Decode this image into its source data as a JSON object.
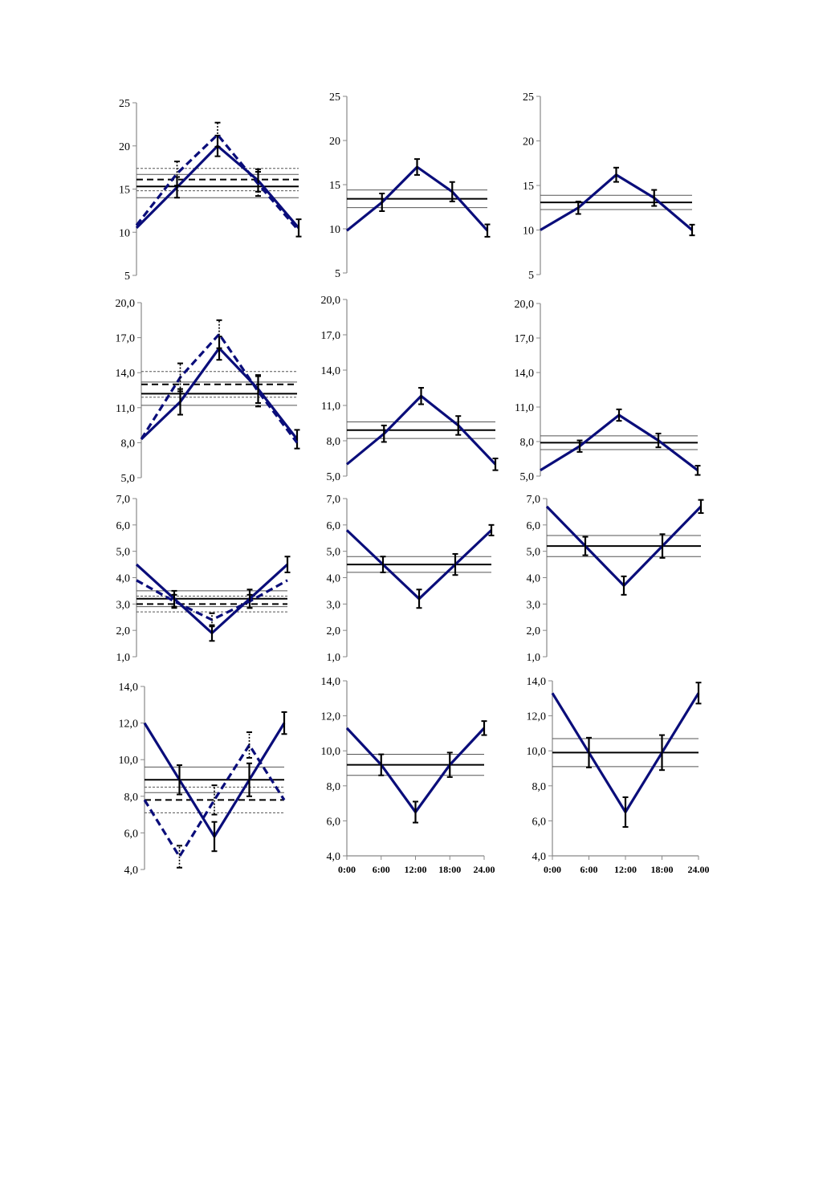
{
  "colors": {
    "series": "#0a0d7a",
    "mean": "#000000",
    "band": "#555555",
    "axis": "#888888"
  },
  "chart_data": [
    {
      "type": "line",
      "x": [
        0,
        6,
        12,
        18,
        24
      ],
      "ylim": [
        5,
        25
      ],
      "yticks": [
        "5",
        "10",
        "15",
        "20",
        "25"
      ],
      "xticks": [],
      "series": [
        {
          "style": "solid",
          "values": [
            10.5,
            15.2,
            20.0,
            16.0,
            10.5
          ],
          "err": [
            0.0,
            1.2,
            1.2,
            1.3,
            1.0
          ]
        },
        {
          "style": "dashed",
          "values": [
            10.8,
            16.8,
            21.3,
            15.6,
            10.2
          ],
          "err": [
            0.0,
            1.4,
            1.4,
            1.4,
            0.0
          ]
        }
      ],
      "hlines": [
        {
          "y": 15.3,
          "style": "mean"
        },
        {
          "y": 16.7,
          "style": "band"
        },
        {
          "y": 14.0,
          "style": "band"
        },
        {
          "y": 16.1,
          "style": "mean-dashed"
        },
        {
          "y": 17.4,
          "style": "band-dashed"
        },
        {
          "y": 14.8,
          "style": "band-dashed"
        }
      ]
    },
    {
      "type": "line",
      "x": [
        0,
        6,
        12,
        18,
        24
      ],
      "ylim": [
        5,
        25
      ],
      "yticks": [
        "5",
        "10",
        "15",
        "20",
        "25"
      ],
      "xticks": [],
      "series": [
        {
          "style": "solid",
          "values": [
            9.8,
            13.0,
            17.0,
            14.2,
            9.8
          ],
          "err": [
            0.0,
            1.0,
            0.9,
            1.1,
            0.7
          ]
        }
      ],
      "hlines": [
        {
          "y": 13.4,
          "style": "mean"
        },
        {
          "y": 14.4,
          "style": "band"
        },
        {
          "y": 12.4,
          "style": "band"
        }
      ]
    },
    {
      "type": "line",
      "x": [
        0,
        6,
        12,
        18,
        24
      ],
      "ylim": [
        5,
        25
      ],
      "yticks": [
        "5",
        "10",
        "15",
        "20",
        "25"
      ],
      "xticks": [],
      "series": [
        {
          "style": "solid",
          "values": [
            10.0,
            12.5,
            16.2,
            13.6,
            10.0
          ],
          "err": [
            0.0,
            0.7,
            0.8,
            0.9,
            0.6
          ]
        }
      ],
      "hlines": [
        {
          "y": 13.1,
          "style": "mean"
        },
        {
          "y": 13.9,
          "style": "band"
        },
        {
          "y": 12.3,
          "style": "band"
        }
      ]
    },
    {
      "type": "line",
      "x": [
        0,
        6,
        12,
        18,
        24
      ],
      "ylim": [
        5,
        20
      ],
      "yticks": [
        "5,0",
        "8,0",
        "11,0",
        "14,0",
        "17,0",
        "20,0"
      ],
      "xticks": [],
      "series": [
        {
          "style": "solid",
          "values": [
            8.3,
            11.5,
            16.1,
            12.6,
            8.3
          ],
          "err": [
            0.0,
            1.1,
            1.0,
            1.2,
            0.8
          ]
        },
        {
          "style": "dashed",
          "values": [
            8.3,
            13.6,
            17.3,
            12.4,
            8.0
          ],
          "err": [
            0.0,
            1.2,
            1.2,
            1.3,
            0.0
          ]
        }
      ],
      "hlines": [
        {
          "y": 12.2,
          "style": "mean"
        },
        {
          "y": 13.2,
          "style": "band"
        },
        {
          "y": 11.2,
          "style": "band"
        },
        {
          "y": 13.0,
          "style": "mean-dashed"
        },
        {
          "y": 14.1,
          "style": "band-dashed"
        },
        {
          "y": 11.9,
          "style": "band-dashed"
        }
      ]
    },
    {
      "type": "line",
      "x": [
        0,
        6,
        12,
        18,
        24
      ],
      "ylim": [
        5,
        20
      ],
      "yticks": [
        "5,0",
        "8,0",
        "11,0",
        "14,0",
        "17,0",
        "20,0"
      ],
      "xticks": [],
      "series": [
        {
          "style": "solid",
          "values": [
            6.0,
            8.6,
            11.8,
            9.3,
            6.0
          ],
          "err": [
            0.0,
            0.7,
            0.7,
            0.8,
            0.5
          ]
        }
      ],
      "hlines": [
        {
          "y": 8.9,
          "style": "mean"
        },
        {
          "y": 9.6,
          "style": "band"
        },
        {
          "y": 8.2,
          "style": "band"
        }
      ]
    },
    {
      "type": "line",
      "x": [
        0,
        6,
        12,
        18,
        24
      ],
      "ylim": [
        5,
        20
      ],
      "yticks": [
        "5,0",
        "8,0",
        "11,0",
        "14,0",
        "17,0",
        "20,0"
      ],
      "xticks": [],
      "series": [
        {
          "style": "solid",
          "values": [
            5.5,
            7.6,
            10.3,
            8.1,
            5.5
          ],
          "err": [
            0.0,
            0.5,
            0.5,
            0.6,
            0.4
          ]
        }
      ],
      "hlines": [
        {
          "y": 7.9,
          "style": "mean"
        },
        {
          "y": 8.5,
          "style": "band"
        },
        {
          "y": 7.3,
          "style": "band"
        }
      ]
    },
    {
      "type": "line",
      "x": [
        0,
        6,
        12,
        18,
        24
      ],
      "ylim": [
        1,
        7
      ],
      "yticks": [
        "1,0",
        "2,0",
        "3,0",
        "4,0",
        "5,0",
        "6,0",
        "7,0"
      ],
      "xticks": [],
      "series": [
        {
          "style": "solid",
          "values": [
            4.5,
            3.2,
            1.9,
            3.2,
            4.5
          ],
          "err": [
            0.0,
            0.3,
            0.3,
            0.35,
            0.3
          ]
        },
        {
          "style": "dashed",
          "values": [
            3.9,
            3.1,
            2.4,
            3.1,
            3.9
          ],
          "err": [
            0.0,
            0.25,
            0.25,
            0.25,
            0.0
          ]
        }
      ],
      "hlines": [
        {
          "y": 3.2,
          "style": "mean"
        },
        {
          "y": 3.5,
          "style": "band"
        },
        {
          "y": 2.9,
          "style": "band"
        },
        {
          "y": 3.0,
          "style": "mean-dashed"
        },
        {
          "y": 3.3,
          "style": "band-dashed"
        },
        {
          "y": 2.7,
          "style": "band-dashed"
        }
      ]
    },
    {
      "type": "line",
      "x": [
        0,
        6,
        12,
        18,
        24
      ],
      "ylim": [
        1,
        7
      ],
      "yticks": [
        "1,0",
        "2,0",
        "3,0",
        "4,0",
        "5,0",
        "6,0",
        "7,0"
      ],
      "xticks": [],
      "series": [
        {
          "style": "solid",
          "values": [
            5.8,
            4.5,
            3.2,
            4.5,
            5.8
          ],
          "err": [
            0.0,
            0.3,
            0.35,
            0.4,
            0.2
          ]
        }
      ],
      "hlines": [
        {
          "y": 4.5,
          "style": "mean"
        },
        {
          "y": 4.8,
          "style": "band"
        },
        {
          "y": 4.2,
          "style": "band"
        }
      ]
    },
    {
      "type": "line",
      "x": [
        0,
        6,
        12,
        18,
        24
      ],
      "ylim": [
        1,
        7
      ],
      "yticks": [
        "1,0",
        "2,0",
        "3,0",
        "4,0",
        "5,0",
        "6,0",
        "7,0"
      ],
      "xticks": [],
      "series": [
        {
          "style": "solid",
          "values": [
            6.7,
            5.2,
            3.7,
            5.2,
            6.7
          ],
          "err": [
            0.0,
            0.35,
            0.35,
            0.45,
            0.25
          ]
        }
      ],
      "hlines": [
        {
          "y": 5.2,
          "style": "mean"
        },
        {
          "y": 5.6,
          "style": "band"
        },
        {
          "y": 4.8,
          "style": "band"
        }
      ]
    },
    {
      "type": "line",
      "x": [
        0,
        6,
        12,
        18,
        24
      ],
      "ylim": [
        4,
        14
      ],
      "yticks": [
        "4,0",
        "6,0",
        "8,0",
        "10,0",
        "12,0",
        "14,0"
      ],
      "xticks": [],
      "series": [
        {
          "style": "solid",
          "values": [
            12.0,
            8.9,
            5.8,
            8.9,
            12.0
          ],
          "err": [
            0.0,
            0.8,
            0.8,
            0.9,
            0.6
          ]
        },
        {
          "style": "dashed",
          "values": [
            7.8,
            4.7,
            7.8,
            10.8,
            7.8
          ],
          "err": [
            0.0,
            0.6,
            0.8,
            0.7,
            0.0
          ]
        }
      ],
      "hlines": [
        {
          "y": 8.9,
          "style": "mean"
        },
        {
          "y": 9.6,
          "style": "band"
        },
        {
          "y": 8.2,
          "style": "band"
        },
        {
          "y": 7.8,
          "style": "mean-dashed"
        },
        {
          "y": 8.5,
          "style": "band-dashed"
        },
        {
          "y": 7.1,
          "style": "band-dashed"
        }
      ]
    },
    {
      "type": "line",
      "x": [
        0,
        6,
        12,
        18,
        24
      ],
      "ylim": [
        4,
        14
      ],
      "yticks": [
        "4,0",
        "6,0",
        "8,0",
        "10,0",
        "12,0",
        "14,0"
      ],
      "xticks": [
        "0:00",
        "6:00",
        "12:00",
        "18:00",
        "24.00"
      ],
      "series": [
        {
          "style": "solid",
          "values": [
            11.3,
            9.2,
            6.5,
            9.2,
            11.3
          ],
          "err": [
            0.0,
            0.6,
            0.6,
            0.7,
            0.4
          ]
        }
      ],
      "hlines": [
        {
          "y": 9.2,
          "style": "mean"
        },
        {
          "y": 9.8,
          "style": "band"
        },
        {
          "y": 8.6,
          "style": "band"
        }
      ]
    },
    {
      "type": "line",
      "x": [
        0,
        6,
        12,
        18,
        24
      ],
      "ylim": [
        4,
        14
      ],
      "yticks": [
        "4,0",
        "6,0",
        "8,0",
        "10,0",
        "12,0",
        "14,0"
      ],
      "xticks": [
        "0:00",
        "6:00",
        "12:00",
        "18:00",
        "24.00"
      ],
      "series": [
        {
          "style": "solid",
          "values": [
            13.3,
            9.9,
            6.5,
            9.9,
            13.3
          ],
          "err": [
            0.0,
            0.85,
            0.85,
            1.0,
            0.6
          ]
        }
      ],
      "hlines": [
        {
          "y": 9.9,
          "style": "mean"
        },
        {
          "y": 10.7,
          "style": "band"
        },
        {
          "y": 9.1,
          "style": "band"
        }
      ]
    }
  ]
}
